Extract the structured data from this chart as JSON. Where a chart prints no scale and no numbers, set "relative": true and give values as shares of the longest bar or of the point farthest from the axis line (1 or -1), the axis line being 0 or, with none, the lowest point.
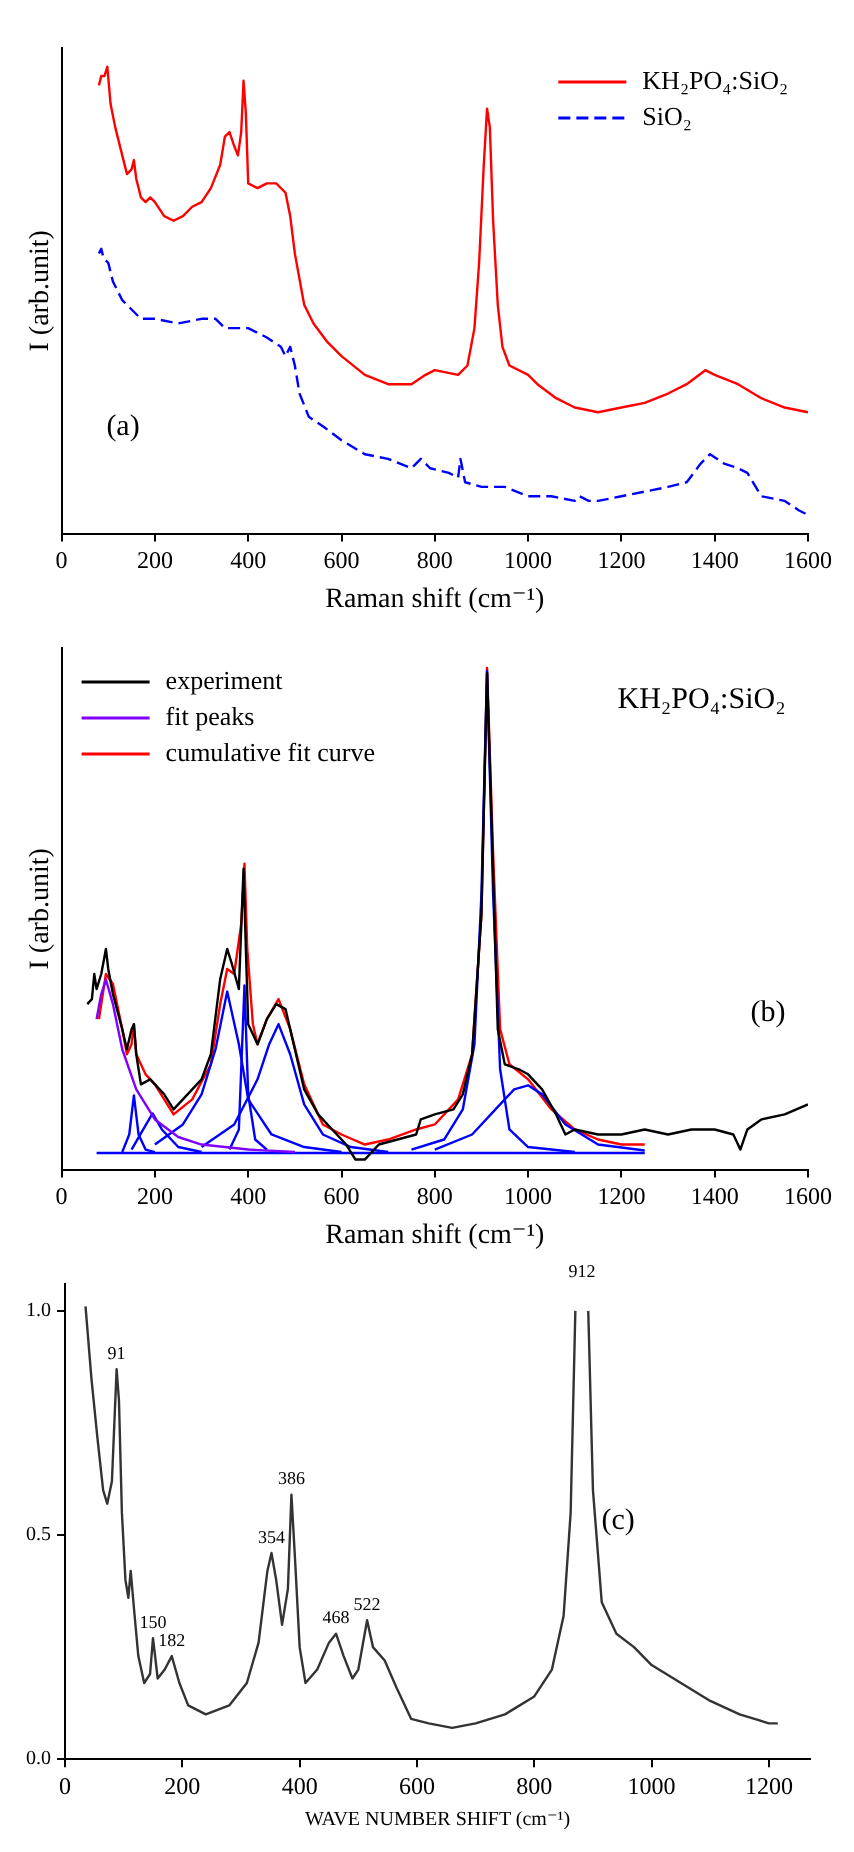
{
  "chart_data": [
    {
      "type": "line",
      "relative": true,
      "xlabel": "Raman shift (cm⁻¹)",
      "ylabel": "I (arb.unit)",
      "xlim": [
        0,
        1600
      ],
      "xticks": [
        0,
        200,
        400,
        600,
        800,
        1000,
        1200,
        1400,
        1600
      ],
      "legend": "top right",
      "annotations": [
        "(a)"
      ],
      "series": [
        {
          "name": "KH₂PO₄:SiO₂",
          "color": "#ff0000",
          "line_style": "solid",
          "x": [
            80,
            85,
            92,
            98,
            105,
            115,
            130,
            140,
            150,
            155,
            160,
            170,
            180,
            190,
            200,
            220,
            240,
            260,
            280,
            300,
            320,
            340,
            350,
            360,
            370,
            378,
            385,
            390,
            395,
            400,
            420,
            440,
            460,
            480,
            490,
            500,
            520,
            540,
            570,
            600,
            650,
            700,
            750,
            780,
            800,
            850,
            870,
            885,
            895,
            905,
            912,
            918,
            925,
            935,
            945,
            960,
            1000,
            1020,
            1060,
            1100,
            1150,
            1200,
            1250,
            1300,
            1340,
            1380,
            1400,
            1450,
            1500,
            1550,
            1600
          ],
          "values": [
            0.96,
            0.98,
            0.98,
            1.0,
            0.92,
            0.87,
            0.81,
            0.77,
            0.78,
            0.8,
            0.76,
            0.72,
            0.71,
            0.72,
            0.71,
            0.68,
            0.67,
            0.68,
            0.7,
            0.71,
            0.74,
            0.79,
            0.85,
            0.86,
            0.83,
            0.81,
            0.86,
            0.97,
            0.9,
            0.75,
            0.74,
            0.75,
            0.75,
            0.73,
            0.68,
            0.6,
            0.49,
            0.45,
            0.41,
            0.38,
            0.34,
            0.32,
            0.32,
            0.34,
            0.35,
            0.34,
            0.36,
            0.44,
            0.58,
            0.79,
            0.91,
            0.87,
            0.67,
            0.49,
            0.4,
            0.36,
            0.34,
            0.32,
            0.29,
            0.27,
            0.26,
            0.27,
            0.28,
            0.3,
            0.32,
            0.35,
            0.34,
            0.32,
            0.29,
            0.27,
            0.26
          ]
        },
        {
          "name": "SiO₂",
          "color": "#0000ff",
          "line_style": "dashed",
          "x": [
            80,
            85,
            90,
            100,
            110,
            130,
            150,
            170,
            200,
            250,
            300,
            330,
            350,
            400,
            440,
            470,
            480,
            490,
            500,
            510,
            530,
            560,
            600,
            650,
            700,
            750,
            770,
            790,
            830,
            850,
            855,
            865,
            900,
            950,
            1000,
            1050,
            1100,
            1110,
            1130,
            1150,
            1200,
            1250,
            1300,
            1340,
            1370,
            1390,
            1420,
            1450,
            1470,
            1500,
            1550,
            1580,
            1600
          ],
          "values": [
            0.6,
            0.61,
            0.59,
            0.58,
            0.54,
            0.5,
            0.48,
            0.46,
            0.46,
            0.45,
            0.46,
            0.46,
            0.44,
            0.44,
            0.42,
            0.4,
            0.38,
            0.4,
            0.36,
            0.3,
            0.25,
            0.23,
            0.2,
            0.17,
            0.16,
            0.14,
            0.16,
            0.14,
            0.13,
            0.12,
            0.16,
            0.11,
            0.1,
            0.1,
            0.08,
            0.08,
            0.07,
            0.08,
            0.07,
            0.07,
            0.08,
            0.09,
            0.1,
            0.11,
            0.15,
            0.17,
            0.15,
            0.14,
            0.13,
            0.08,
            0.07,
            0.05,
            0.04
          ]
        }
      ]
    },
    {
      "type": "line",
      "relative": true,
      "xlabel": "Raman shift (cm⁻¹)",
      "ylabel": "I (arb.unit)",
      "xlim": [
        0,
        1600
      ],
      "xticks": [
        0,
        200,
        400,
        600,
        800,
        1000,
        1200,
        1400,
        1600
      ],
      "legend": "top left",
      "annotations": [
        "KH₂PO₄:SiO₂",
        "(b)"
      ],
      "series": [
        {
          "name": "experiment",
          "color": "#000000",
          "x": [
            55,
            65,
            70,
            75,
            85,
            95,
            100,
            110,
            130,
            140,
            150,
            155,
            160,
            170,
            190,
            200,
            220,
            240,
            270,
            300,
            320,
            340,
            355,
            365,
            380,
            390,
            395,
            400,
            420,
            440,
            460,
            480,
            500,
            520,
            550,
            580,
            610,
            630,
            650,
            680,
            720,
            760,
            770,
            800,
            840,
            860,
            880,
            900,
            912,
            920,
            935,
            950,
            980,
            1000,
            1030,
            1060,
            1080,
            1100,
            1150,
            1200,
            1250,
            1300,
            1350,
            1400,
            1440,
            1455,
            1470,
            1500,
            1550,
            1600
          ],
          "values": [
            0.33,
            0.34,
            0.39,
            0.36,
            0.39,
            0.44,
            0.4,
            0.35,
            0.28,
            0.24,
            0.28,
            0.29,
            0.23,
            0.17,
            0.18,
            0.17,
            0.15,
            0.12,
            0.15,
            0.18,
            0.23,
            0.38,
            0.44,
            0.41,
            0.36,
            0.6,
            0.44,
            0.29,
            0.25,
            0.3,
            0.33,
            0.32,
            0.24,
            0.16,
            0.11,
            0.08,
            0.05,
            0.02,
            0.02,
            0.05,
            0.06,
            0.07,
            0.1,
            0.11,
            0.12,
            0.15,
            0.23,
            0.51,
            0.99,
            0.75,
            0.28,
            0.21,
            0.2,
            0.19,
            0.16,
            0.11,
            0.07,
            0.08,
            0.07,
            0.07,
            0.08,
            0.07,
            0.08,
            0.08,
            0.07,
            0.04,
            0.08,
            0.1,
            0.11,
            0.13
          ]
        },
        {
          "name": "fit peaks",
          "color": "#8000ff",
          "x": [
            75,
            85,
            95,
            110,
            130,
            160,
            200,
            250,
            300,
            400,
            500
          ],
          "values": [
            0.3,
            0.35,
            0.379,
            0.33,
            0.24,
            0.16,
            0.1,
            0.065,
            0.05,
            0.04,
            0.035
          ]
        },
        {
          "color": "#0000ff",
          "x": [
            130,
            145,
            155,
            165,
            180,
            200
          ],
          "values": [
            0.035,
            0.07,
            0.148,
            0.07,
            0.04,
            0.035
          ]
        },
        {
          "color": "#0000ff",
          "x": [
            150,
            175,
            195,
            215,
            250,
            300
          ],
          "values": [
            0.04,
            0.08,
            0.112,
            0.08,
            0.045,
            0.035
          ]
        },
        {
          "color": "#0000ff",
          "x": [
            200,
            260,
            300,
            330,
            355,
            380,
            400,
            450,
            520,
            600
          ],
          "values": [
            0.05,
            0.09,
            0.15,
            0.24,
            0.355,
            0.25,
            0.14,
            0.07,
            0.045,
            0.035
          ]
        },
        {
          "color": "#0000ff",
          "x": [
            360,
            380,
            392,
            400,
            415,
            440
          ],
          "values": [
            0.04,
            0.08,
            0.367,
            0.15,
            0.06,
            0.04
          ]
        },
        {
          "color": "#0000ff",
          "x": [
            300,
            370,
            420,
            445,
            465,
            490,
            520,
            560,
            620,
            700
          ],
          "values": [
            0.045,
            0.09,
            0.18,
            0.25,
            0.29,
            0.23,
            0.13,
            0.07,
            0.045,
            0.035
          ]
        },
        {
          "color": "#0000ff",
          "x": [
            750,
            820,
            860,
            885,
            900,
            912,
            925,
            940,
            960,
            1000,
            1100
          ],
          "values": [
            0.04,
            0.06,
            0.12,
            0.25,
            0.55,
            0.994,
            0.55,
            0.2,
            0.08,
            0.045,
            0.035
          ]
        },
        {
          "color": "#0000ff",
          "x": [
            800,
            880,
            940,
            970,
            1000,
            1030,
            1080,
            1150,
            1250
          ],
          "values": [
            0.04,
            0.07,
            0.13,
            0.16,
            0.168,
            0.15,
            0.09,
            0.05,
            0.038
          ]
        },
        {
          "color": "#0000ff",
          "x": [
            75,
            1250
          ],
          "values": [
            0.033,
            0.033
          ]
        },
        {
          "name": "cumulative fit curve",
          "color": "#ff0000",
          "x": [
            80,
            95,
            110,
            130,
            140,
            150,
            155,
            160,
            180,
            200,
            240,
            280,
            320,
            340,
            355,
            370,
            385,
            392,
            398,
            410,
            420,
            440,
            465,
            490,
            520,
            560,
            600,
            650,
            700,
            760,
            800,
            850,
            880,
            900,
            912,
            925,
            940,
            960,
            1000,
            1050,
            1100,
            1150,
            1200,
            1250
          ],
          "values": [
            0.3,
            0.39,
            0.37,
            0.28,
            0.23,
            0.25,
            0.29,
            0.23,
            0.19,
            0.17,
            0.11,
            0.14,
            0.21,
            0.33,
            0.4,
            0.39,
            0.49,
            0.61,
            0.44,
            0.29,
            0.25,
            0.3,
            0.34,
            0.28,
            0.17,
            0.09,
            0.07,
            0.05,
            0.06,
            0.08,
            0.09,
            0.14,
            0.23,
            0.51,
            1.0,
            0.63,
            0.28,
            0.21,
            0.18,
            0.12,
            0.08,
            0.06,
            0.05,
            0.05
          ]
        }
      ]
    },
    {
      "type": "line",
      "xlabel": "WAVE NUMBER SHIFT (cm⁻¹)",
      "xlim": [
        0,
        1270
      ],
      "xticks": [
        0,
        200,
        400,
        600,
        800,
        1000,
        1200
      ],
      "ylim": [
        0,
        1.06
      ],
      "yticks": [
        {
          "value": 0,
          "label": "0.0"
        },
        {
          "value": 0.5,
          "label": "0.5"
        },
        {
          "value": 1,
          "label": "1.0"
        }
      ],
      "annotations": [
        "(c)",
        {
          "text": "91",
          "x": 88,
          "y": 0.87
        },
        {
          "text": "150",
          "x": 150,
          "y": 0.27
        },
        {
          "text": "182",
          "x": 182,
          "y": 0.23
        },
        {
          "text": "354",
          "x": 352,
          "y": 0.46
        },
        {
          "text": "386",
          "x": 386,
          "y": 0.59
        },
        {
          "text": "468",
          "x": 462,
          "y": 0.28
        },
        {
          "text": "522",
          "x": 515,
          "y": 0.31
        },
        "912"
      ],
      "series": [
        {
          "color": "#333333",
          "x": [
            35,
            45,
            55,
            65,
            72,
            80,
            88,
            92,
            97,
            103,
            108,
            112,
            118,
            125,
            135,
            145,
            150,
            158,
            170,
            182,
            195,
            210,
            240,
            280,
            310,
            330,
            345,
            352,
            360,
            370,
            380,
            386,
            392,
            400,
            410,
            430,
            450,
            462,
            475,
            490,
            500,
            515,
            525,
            545,
            565,
            590,
            620,
            660,
            700,
            750,
            800,
            830,
            850,
            862,
            870,
            880,
            892,
            900,
            915,
            940,
            970,
            1000,
            1050,
            1100,
            1150,
            1200,
            1215
          ],
          "values": [
            1.01,
            0.85,
            0.72,
            0.6,
            0.57,
            0.62,
            0.87,
            0.8,
            0.55,
            0.4,
            0.36,
            0.42,
            0.33,
            0.23,
            0.17,
            0.19,
            0.27,
            0.18,
            0.2,
            0.23,
            0.17,
            0.12,
            0.1,
            0.12,
            0.17,
            0.26,
            0.42,
            0.46,
            0.4,
            0.3,
            0.38,
            0.59,
            0.45,
            0.25,
            0.17,
            0.2,
            0.26,
            0.28,
            0.23,
            0.18,
            0.2,
            0.31,
            0.25,
            0.22,
            0.16,
            0.09,
            0.08,
            0.07,
            0.08,
            0.1,
            0.14,
            0.2,
            0.32,
            0.55,
            1.0,
            null,
            1.0,
            0.6,
            0.35,
            0.28,
            0.25,
            0.21,
            0.17,
            0.13,
            0.1,
            0.08,
            0.08
          ]
        }
      ]
    }
  ]
}
